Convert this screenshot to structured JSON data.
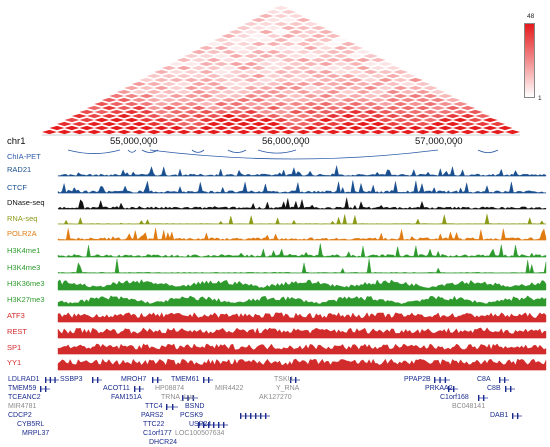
{
  "browser": {
    "chrom": "chr1",
    "coordinate_ticks": [
      "55,000,000",
      "56,000,000",
      "57,000,000"
    ],
    "legend": {
      "max": "48",
      "min": "1",
      "max_color": "#e41a1c",
      "min_color": "#ffffff"
    },
    "tracks": [
      {
        "label": "ChIA-PET",
        "color": "#2b5aa7"
      },
      {
        "label": "RAD21",
        "color": "#1a4f8f"
      },
      {
        "label": "CTCF",
        "color": "#1a4f8f"
      },
      {
        "label": "DNase-seq",
        "color": "#111111"
      },
      {
        "label": "RNA-seq",
        "color": "#8a9a16"
      },
      {
        "label": "POLR2A",
        "color": "#e07b12"
      },
      {
        "label": "H3K4me1",
        "color": "#2e9a2e"
      },
      {
        "label": "H3K4me3",
        "color": "#2e9a2e"
      },
      {
        "label": "H3K36me3",
        "color": "#2e9a2e"
      },
      {
        "label": "H3K27me3",
        "color": "#2e9a2e"
      },
      {
        "label": "ATF3",
        "color": "#d22b2b"
      },
      {
        "label": "REST",
        "color": "#d22b2b"
      },
      {
        "label": "SP1",
        "color": "#d22b2b"
      },
      {
        "label": "YY1",
        "color": "#d22b2b"
      }
    ],
    "genes": [
      {
        "name": "LDLRAD1",
        "color": "#1c2d8f"
      },
      {
        "name": "SSBP3",
        "color": "#1c2d8f"
      },
      {
        "name": "MROH7",
        "color": "#1c2d8f"
      },
      {
        "name": "TMEM61",
        "color": "#1c2d8f"
      },
      {
        "name": "TSKU",
        "color": "#8c8c8c"
      },
      {
        "name": "PPAP2B",
        "color": "#1c2d8f"
      },
      {
        "name": "C8A",
        "color": "#1c2d8f"
      },
      {
        "name": "TMEM59",
        "color": "#1c2d8f"
      },
      {
        "name": "ACOT11",
        "color": "#1c2d8f"
      },
      {
        "name": "HP08874",
        "color": "#8c8c8c"
      },
      {
        "name": "MIR4422",
        "color": "#8c8c8c"
      },
      {
        "name": "Y_RNA",
        "color": "#8c8c8c"
      },
      {
        "name": "PRKAA2",
        "color": "#1c2d8f"
      },
      {
        "name": "C8B",
        "color": "#1c2d8f"
      },
      {
        "name": "TCEANC2",
        "color": "#1c2d8f"
      },
      {
        "name": "FAM151A",
        "color": "#1c2d8f"
      },
      {
        "name": "TRNA_Lys",
        "color": "#8c8c8c"
      },
      {
        "name": "AK127270",
        "color": "#8c8c8c"
      },
      {
        "name": "C1orf168",
        "color": "#1c2d8f"
      },
      {
        "name": "MIR4781",
        "color": "#8c8c8c"
      },
      {
        "name": "TTC4",
        "color": "#1c2d8f"
      },
      {
        "name": "BSND",
        "color": "#1c2d8f"
      },
      {
        "name": "BC048141",
        "color": "#8c8c8c"
      },
      {
        "name": "CDCP2",
        "color": "#1c2d8f"
      },
      {
        "name": "PARS2",
        "color": "#1c2d8f"
      },
      {
        "name": "PCSK9",
        "color": "#1c2d8f"
      },
      {
        "name": "DAB1",
        "color": "#1c2d8f"
      },
      {
        "name": "CYB5RL",
        "color": "#1c2d8f"
      },
      {
        "name": "TTC22",
        "color": "#1c2d8f"
      },
      {
        "name": "USP24",
        "color": "#1c2d8f"
      },
      {
        "name": "MRPL37",
        "color": "#1c2d8f"
      },
      {
        "name": "C1orf177",
        "color": "#1c2d8f"
      },
      {
        "name": "LOC100507634",
        "color": "#8c8c8c"
      },
      {
        "name": "DHCR24",
        "color": "#1c2d8f"
      }
    ]
  }
}
